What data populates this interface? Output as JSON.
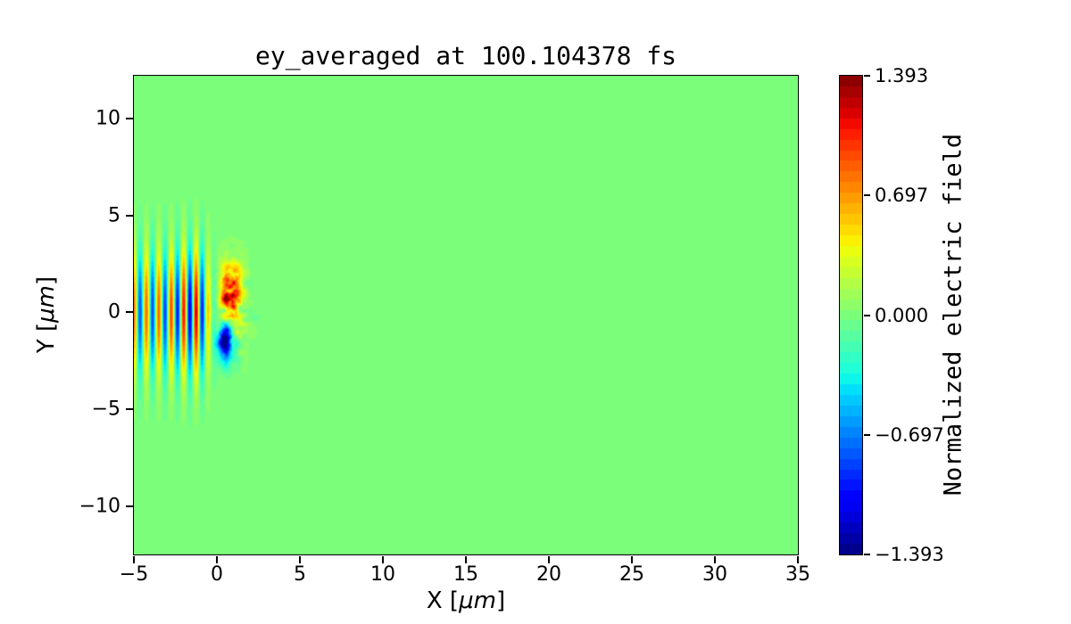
{
  "chart_data": {
    "type": "heatmap",
    "title": "ey_averaged at 100.104378 fs",
    "xlabel": "X [μm]",
    "xlabel_parts": [
      "X [",
      "μm",
      "]"
    ],
    "ylabel": "Y [μm]",
    "ylabel_parts": [
      "Y [",
      "μm",
      "]"
    ],
    "xlim": [
      -5,
      35
    ],
    "ylim": [
      -12.5,
      12.2
    ],
    "xticks": [
      -5,
      0,
      5,
      10,
      15,
      20,
      25,
      30,
      35
    ],
    "xtick_labels": [
      "−5",
      "0",
      "5",
      "10",
      "15",
      "20",
      "25",
      "30",
      "35"
    ],
    "yticks": [
      10,
      5,
      0,
      -5,
      -10
    ],
    "ytick_labels": [
      "10",
      "5",
      "0",
      "−5",
      "−10"
    ],
    "grid": false,
    "colormap": "jet",
    "levels": 45,
    "colorbar": {
      "label": "Normalized electric field",
      "position": "right",
      "vmin": -1.393,
      "vmax": 1.393,
      "tick_values": [
        1.393,
        0.697,
        0.0,
        -0.697,
        -1.393
      ],
      "tick_labels": [
        "1.393",
        "0.697",
        "0.000",
        "−0.697",
        "−1.393"
      ]
    },
    "field_model": {
      "description": "Normalized Ey field at t=100.104378 fs: laser pulse of vertical red/blue stripes (x from -5 to ~0.9 um, centered on y=0, Gaussian envelope) plus a turbulent positive (red) blob near (0.85, 0.9) and a negative (blue) blob near (0.55, -1.5); field is 0 (green) elsewhere",
      "background_value": 0,
      "stripes": {
        "x_range": [
          -5,
          0.9
        ],
        "wavelength_um": 0.75,
        "peak_x": -1.25,
        "base_amplitude": 0.85,
        "peak_amplitude": 1.22,
        "decay_sigma_right": 0.8,
        "y_gaussian_width": 3.1,
        "visible_y_extent": 4.5
      },
      "positive_blob": {
        "x": 0.85,
        "y": 0.9,
        "sx": 0.6,
        "sy": 1.55,
        "amplitude": 1.15
      },
      "negative_blob": {
        "x": 0.55,
        "y": -1.5,
        "sx": 0.48,
        "sy": 1.0,
        "amplitude": -1.4
      },
      "speckle": {
        "x": 1.0,
        "y": 0.0,
        "sx": 1.1,
        "sy": 2.6,
        "amplitude": 0.9
      }
    },
    "colors": {
      "zero_field_green": "#7bff7b",
      "spine": "#000000",
      "figure_bg": "#ffffff",
      "text": "#000000"
    }
  }
}
